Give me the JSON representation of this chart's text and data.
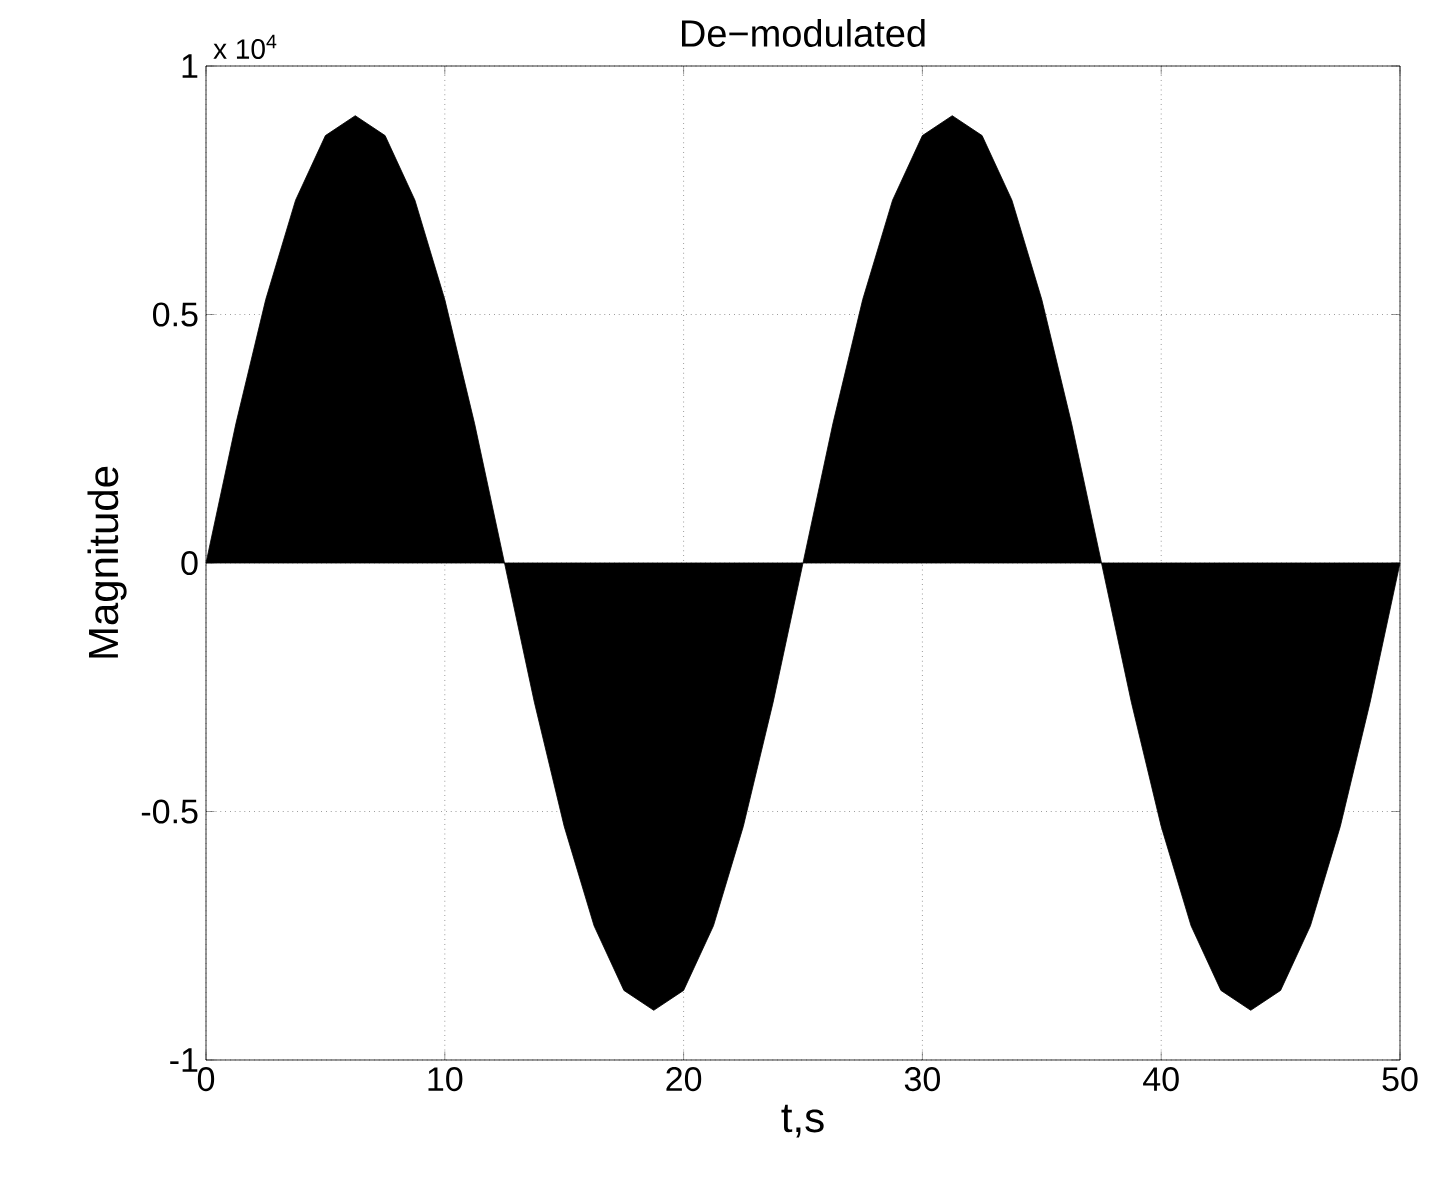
{
  "chart_data": {
    "type": "area",
    "title": "De−modulated",
    "xlabel": "t,s",
    "ylabel": "Magnitude",
    "annotations": [
      "x 10$^{4}$"
    ],
    "x": [
      0,
      1.25,
      2.5,
      3.75,
      5,
      6.25,
      7.5,
      8.75,
      10,
      11.25,
      12.5,
      13.75,
      15,
      16.25,
      17.5,
      18.75,
      20,
      21.25,
      22.5,
      23.75,
      25,
      26.25,
      27.5,
      28.75,
      30,
      31.25,
      32.5,
      33.75,
      35,
      36.25,
      37.5,
      38.75,
      40,
      41.25,
      42.5,
      43.75,
      45,
      46.25,
      47.5,
      48.75,
      50
    ],
    "series": [
      {
        "color": "#000000",
        "values": [
          0,
          0.28,
          0.53,
          0.73,
          0.86,
          0.9,
          0.86,
          0.73,
          0.53,
          0.28,
          0,
          -0.28,
          -0.53,
          -0.73,
          -0.86,
          -0.9,
          -0.86,
          -0.73,
          -0.53,
          -0.28,
          0,
          0.28,
          0.53,
          0.73,
          0.86,
          0.9,
          0.86,
          0.73,
          0.53,
          0.28,
          0,
          -0.28,
          -0.53,
          -0.73,
          -0.86,
          -0.9,
          -0.86,
          -0.73,
          -0.53,
          -0.28,
          0
        ]
      }
    ],
    "xlim": [
      0,
      50
    ],
    "xticks": [
      0,
      10,
      20,
      30,
      40,
      50
    ],
    "ylim": [
      -1,
      1
    ],
    "yticks": [
      -1,
      -0.5,
      0,
      0.5,
      1
    ],
    "grid": true
  }
}
